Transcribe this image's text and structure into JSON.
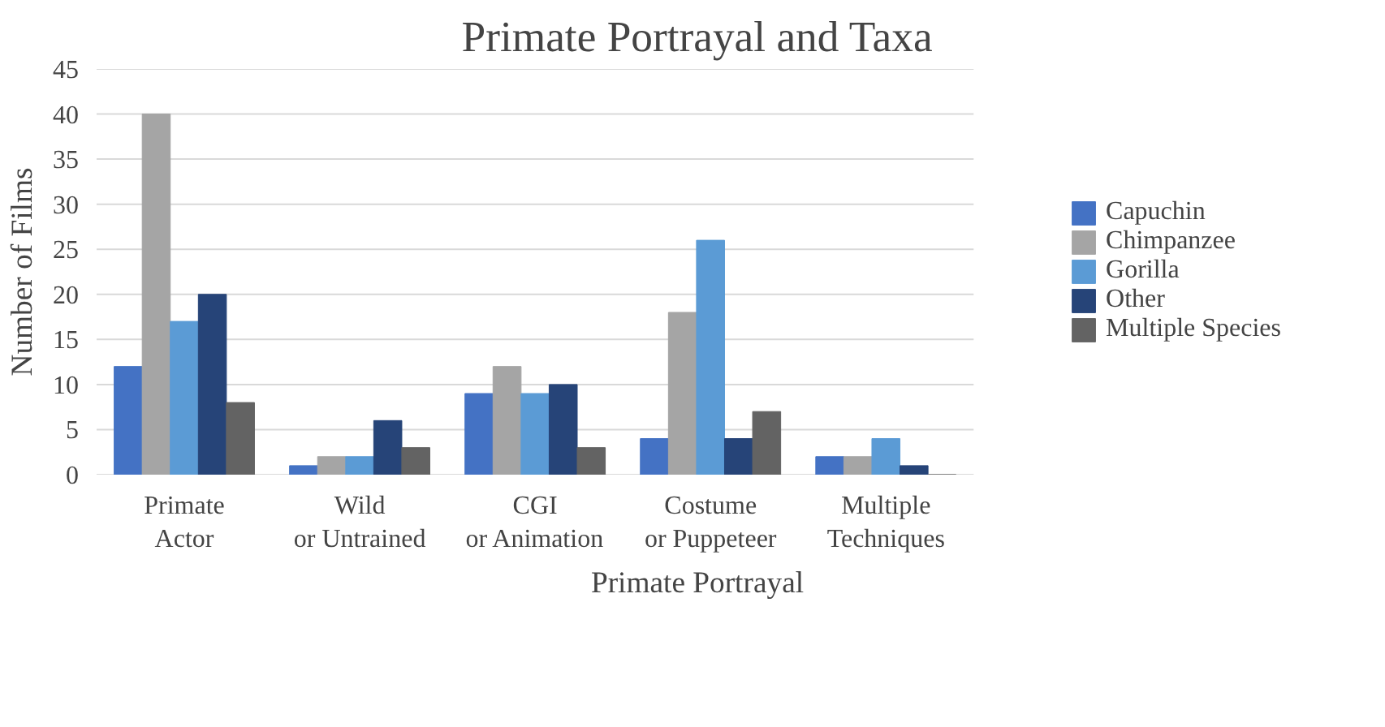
{
  "chart_data": {
    "type": "bar",
    "title": "Primate Portrayal and Taxa",
    "xlabel": "Primate Portrayal",
    "ylabel": "Number of Films",
    "categories": [
      "Primate Actor",
      "Wild or Untrained",
      "CGI or Animation",
      "Costume or Puppeteer",
      "Multiple Techniques"
    ],
    "series": [
      {
        "name": "Capuchin",
        "color": "#4472c4",
        "values": [
          12,
          1,
          9,
          4,
          2
        ]
      },
      {
        "name": "Chimpanzee",
        "color": "#a5a5a5",
        "values": [
          40,
          2,
          12,
          18,
          2
        ]
      },
      {
        "name": "Gorilla",
        "color": "#5b9bd5",
        "values": [
          17,
          2,
          9,
          26,
          4
        ]
      },
      {
        "name": "Other",
        "color": "#264478",
        "values": [
          20,
          6,
          10,
          4,
          1
        ]
      },
      {
        "name": "Multiple Species",
        "color": "#636363",
        "values": [
          8,
          3,
          3,
          7,
          0
        ]
      }
    ],
    "ylim": [
      0,
      45
    ],
    "yticks": [
      0,
      5,
      10,
      15,
      20,
      25,
      30,
      35,
      40,
      45
    ],
    "grid": "y",
    "legend": "right"
  }
}
